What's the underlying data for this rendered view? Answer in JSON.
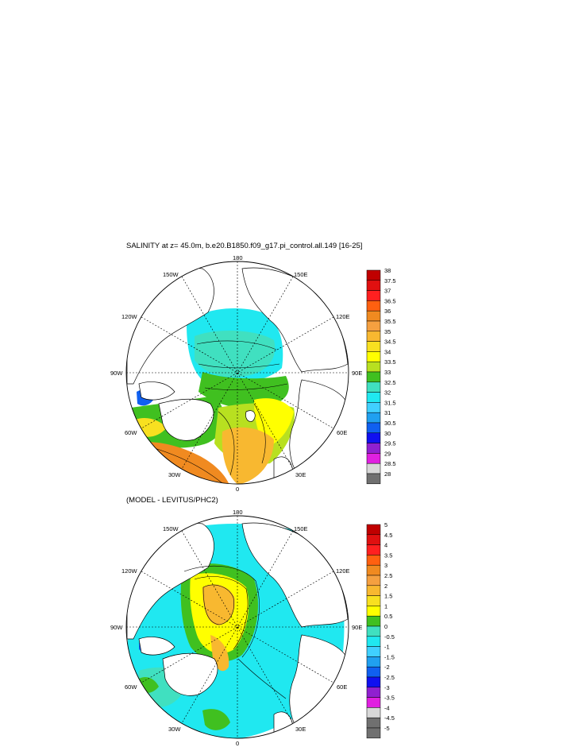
{
  "panels": [
    {
      "title": "SALINITY at z=  45.0m, b.e20.B1850.f09_g17.pi_control.all.149 [16-25]",
      "lon_labels": {
        "top": "180",
        "tl": "150W",
        "tr": "150E",
        "ul": "120W",
        "ur": "120E",
        "l": "90W",
        "r": "90E",
        "ll": "60W",
        "lr": "60E",
        "bl": "30W",
        "br": "30E",
        "bottom": "0"
      },
      "colorbar": {
        "labels": [
          "38",
          "37.5",
          "37",
          "36.5",
          "36",
          "35.5",
          "35",
          "34.5",
          "34",
          "33.5",
          "33",
          "32.5",
          "32",
          "31.5",
          "31",
          "30.5",
          "30",
          "29.5",
          "29",
          "28.5",
          "28"
        ],
        "colors": [
          "#c00000",
          "#e01010",
          "#ff2020",
          "#ff6010",
          "#f08a20",
          "#f5a040",
          "#f8b830",
          "#f8e020",
          "#ffff00",
          "#b8e020",
          "#40c020",
          "#40e0c0",
          "#20e8f0",
          "#40d0ff",
          "#20a0f0",
          "#1060f0",
          "#1010f0",
          "#9020d0",
          "#e020e0",
          "#d8d8d8",
          "#707070"
        ]
      }
    },
    {
      "title": "(MODEL - LEVITUS/PHC2)",
      "lon_labels": {
        "top": "180",
        "tl": "150W",
        "tr": "150E",
        "ul": "120W",
        "ur": "120E",
        "l": "90W",
        "r": "90E",
        "ll": "60W",
        "lr": "60E",
        "bl": "30W",
        "br": "30E",
        "bottom": "0"
      },
      "colorbar": {
        "labels": [
          "5",
          "4.5",
          "4",
          "3.5",
          "3",
          "2.5",
          "2",
          "1.5",
          "1",
          "0.5",
          "0",
          "-0.5",
          "-1",
          "-1.5",
          "-2",
          "-2.5",
          "-3",
          "-3.5",
          "-4",
          "-4.5",
          "-5"
        ],
        "colors": [
          "#c00000",
          "#e01010",
          "#ff2020",
          "#ff6010",
          "#f08a20",
          "#f5a040",
          "#f8b830",
          "#f8e020",
          "#ffff00",
          "#40c020",
          "#40e0c0",
          "#20e8f0",
          "#40d0ff",
          "#20a0f0",
          "#1060f0",
          "#1010f0",
          "#9020d0",
          "#e020e0",
          "#d8d8d8",
          "#707070",
          "#707070"
        ]
      }
    }
  ]
}
